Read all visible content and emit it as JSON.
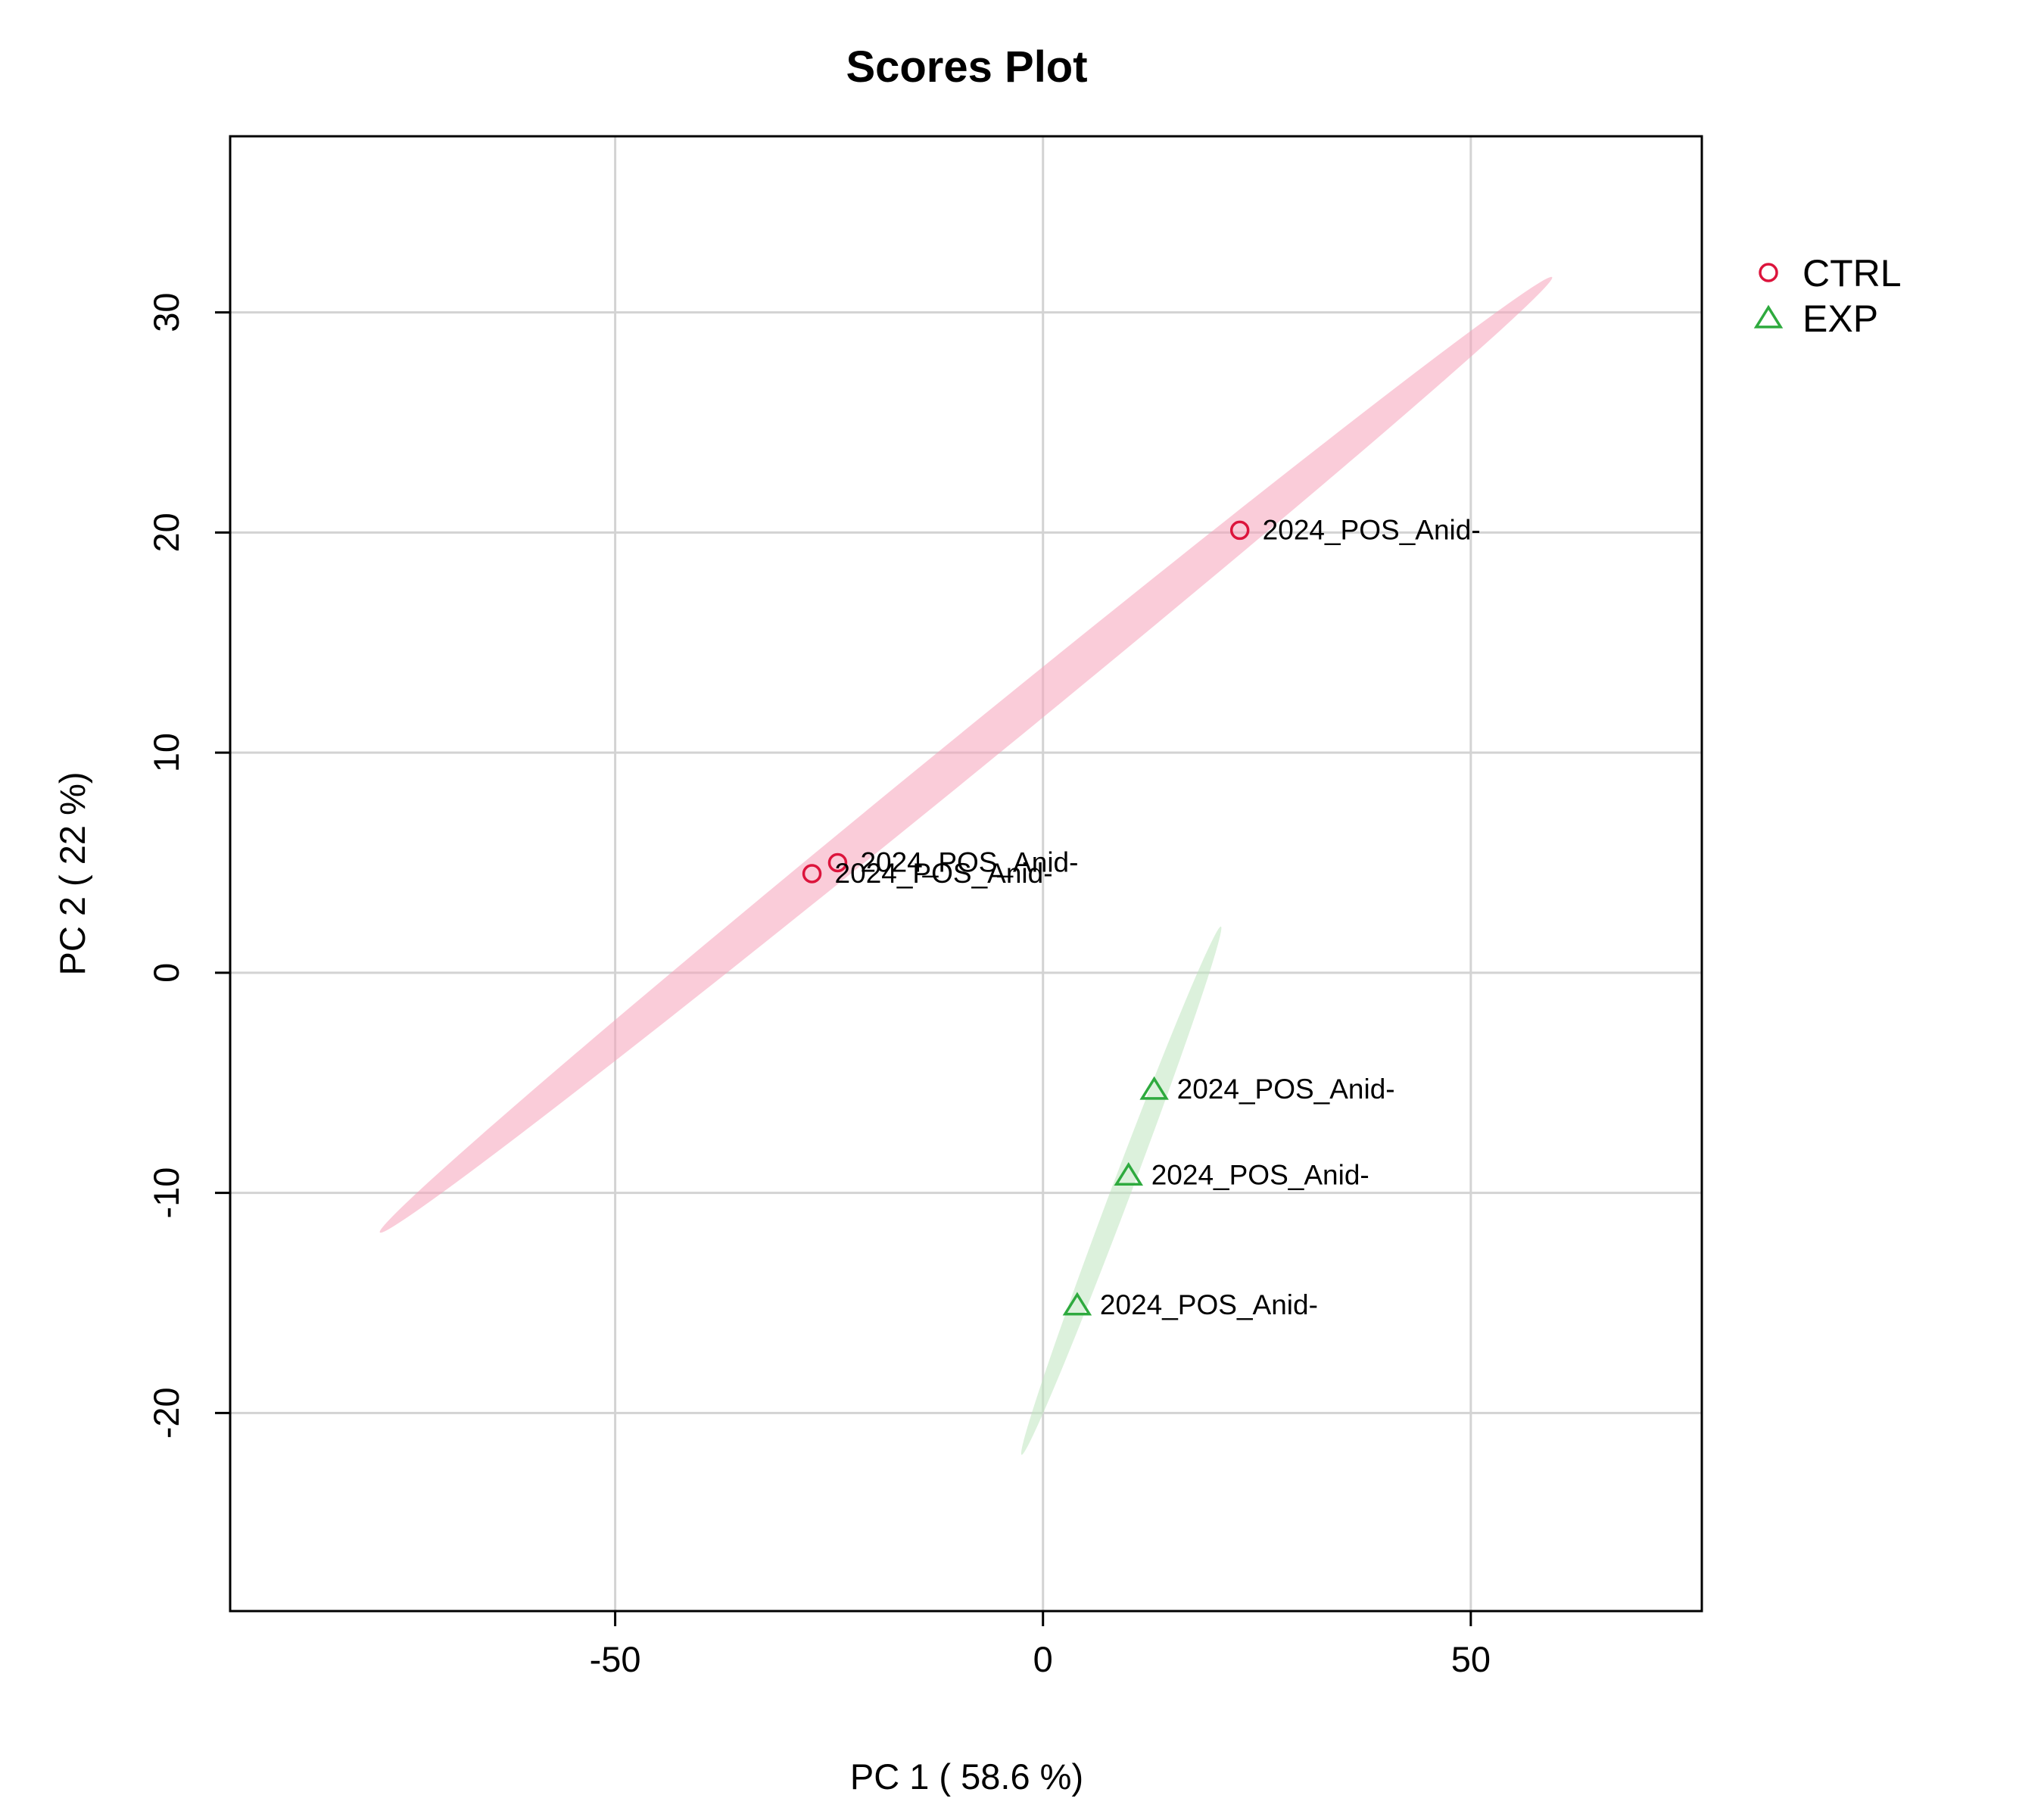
{
  "chart_data": {
    "type": "scatter",
    "title": "Scores Plot",
    "xlabel": "PC 1 ( 58.6 %)",
    "ylabel": "PC 2 ( 22 %)",
    "xlim": [
      -95,
      77
    ],
    "ylim": [
      -29,
      38
    ],
    "xticks": [
      -50,
      0,
      50
    ],
    "yticks": [
      -20,
      -10,
      0,
      10,
      20,
      30
    ],
    "xtick_labels": [
      "-50",
      "0",
      "50"
    ],
    "ytick_labels": [
      "-20",
      "-10",
      "0",
      "10",
      "20",
      "30"
    ],
    "grid": true,
    "legend_position": "right",
    "series": [
      {
        "name": "CTRL",
        "marker": "circle",
        "color": "#DC143C",
        "ellipse_color": "#F5A3BA",
        "points": [
          {
            "x": 23,
            "y": 20.1,
            "label": "2024_POS_Anid-"
          },
          {
            "x": -24,
            "y": 5.0,
            "label": "2024_POS_Anid-"
          },
          {
            "x": -27,
            "y": 4.5,
            "label": "2024_POS_Anid-"
          }
        ],
        "ellipse": {
          "center": [
            -9,
            9.9
          ],
          "major_end_a": [
            -77.5,
            -11.8
          ],
          "major_end_b": [
            59.5,
            31.6
          ],
          "half_width": 0.9
        }
      },
      {
        "name": "EXP",
        "marker": "triangle",
        "color": "#2EAA3E",
        "ellipse_color": "#BFE6C0",
        "points": [
          {
            "x": 13,
            "y": -5.3,
            "label": "2024_POS_Anid-"
          },
          {
            "x": 10,
            "y": -9.2,
            "label": "2024_POS_Anid-"
          },
          {
            "x": 4,
            "y": -15.1,
            "label": "2024_POS_Anid-"
          }
        ],
        "ellipse": {
          "center": [
            9,
            -9.9
          ],
          "major_end_a": [
            -2.5,
            -21.9
          ],
          "major_end_b": [
            20.8,
            2.1
          ],
          "half_width": 0.45
        }
      }
    ]
  }
}
